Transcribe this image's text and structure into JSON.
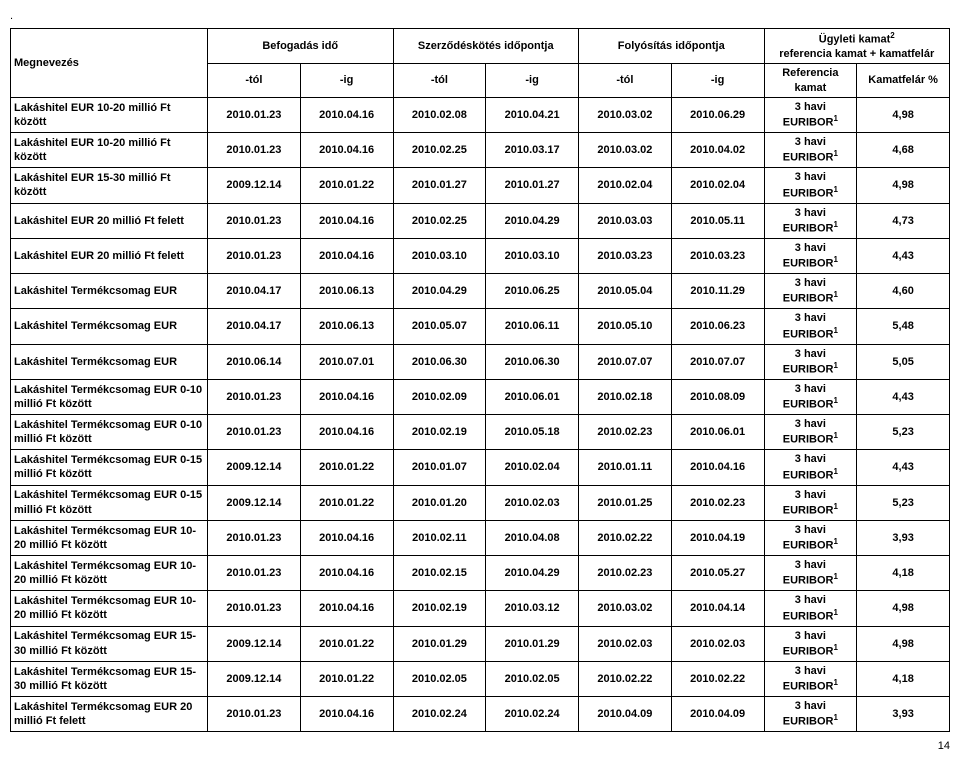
{
  "dot": ".",
  "page_number": "14",
  "header": {
    "megnevezes": "Megnevezés",
    "befogadas": "Befogadás idő",
    "szerzodeskotes": "Szerződéskötés időpontja",
    "folyositas": "Folyósítás időpontja",
    "ugyleti": "Ügyleti kamat",
    "ugyleti_sup": "2",
    "refplus": "referencia kamat + kamatfelár",
    "tol": "-tól",
    "ig": "-ig",
    "ref_kamat": "Referencia kamat",
    "kamatfelar": "Kamatfelár %"
  },
  "rows": [
    {
      "name": "Lakáshitel EUR 10-20 millió Ft között",
      "d": [
        "2010.01.23",
        "2010.04.16",
        "2010.02.08",
        "2010.04.21",
        "2010.03.02",
        "2010.06.29"
      ],
      "ref": "3 havi EURIBOR",
      "sup": "1",
      "pct": "4,98"
    },
    {
      "name": "Lakáshitel EUR 10-20 millió Ft között",
      "d": [
        "2010.01.23",
        "2010.04.16",
        "2010.02.25",
        "2010.03.17",
        "2010.03.02",
        "2010.04.02"
      ],
      "ref": "3 havi EURIBOR",
      "sup": "1",
      "pct": "4,68"
    },
    {
      "name": "Lakáshitel EUR 15-30 millió Ft között",
      "d": [
        "2009.12.14",
        "2010.01.22",
        "2010.01.27",
        "2010.01.27",
        "2010.02.04",
        "2010.02.04"
      ],
      "ref": "3 havi EURIBOR",
      "sup": "1",
      "pct": "4,98"
    },
    {
      "name": "Lakáshitel EUR 20 millió Ft felett",
      "d": [
        "2010.01.23",
        "2010.04.16",
        "2010.02.25",
        "2010.04.29",
        "2010.03.03",
        "2010.05.11"
      ],
      "ref": "3 havi EURIBOR",
      "sup": "1",
      "pct": "4,73"
    },
    {
      "name": "Lakáshitel EUR 20 millió Ft felett",
      "d": [
        "2010.01.23",
        "2010.04.16",
        "2010.03.10",
        "2010.03.10",
        "2010.03.23",
        "2010.03.23"
      ],
      "ref": "3 havi EURIBOR",
      "sup": "1",
      "pct": "4,43"
    },
    {
      "name": "Lakáshitel Termékcsomag EUR",
      "d": [
        "2010.04.17",
        "2010.06.13",
        "2010.04.29",
        "2010.06.25",
        "2010.05.04",
        "2010.11.29"
      ],
      "ref": "3 havi EURIBOR",
      "sup": "1",
      "pct": "4,60"
    },
    {
      "name": "Lakáshitel Termékcsomag EUR",
      "d": [
        "2010.04.17",
        "2010.06.13",
        "2010.05.07",
        "2010.06.11",
        "2010.05.10",
        "2010.06.23"
      ],
      "ref": "3 havi EURIBOR",
      "sup": "1",
      "pct": "5,48"
    },
    {
      "name": "Lakáshitel Termékcsomag EUR",
      "d": [
        "2010.06.14",
        "2010.07.01",
        "2010.06.30",
        "2010.06.30",
        "2010.07.07",
        "2010.07.07"
      ],
      "ref": "3 havi EURIBOR",
      "sup": "1",
      "pct": "5,05"
    },
    {
      "name": "Lakáshitel Termékcsomag EUR 0-10 millió Ft között",
      "d": [
        "2010.01.23",
        "2010.04.16",
        "2010.02.09",
        "2010.06.01",
        "2010.02.18",
        "2010.08.09"
      ],
      "ref": "3 havi EURIBOR",
      "sup": "1",
      "pct": "4,43"
    },
    {
      "name": "Lakáshitel Termékcsomag EUR 0-10 millió Ft között",
      "d": [
        "2010.01.23",
        "2010.04.16",
        "2010.02.19",
        "2010.05.18",
        "2010.02.23",
        "2010.06.01"
      ],
      "ref": "3 havi EURIBOR",
      "sup": "1",
      "pct": "5,23"
    },
    {
      "name": "Lakáshitel Termékcsomag EUR 0-15 millió Ft között",
      "d": [
        "2009.12.14",
        "2010.01.22",
        "2010.01.07",
        "2010.02.04",
        "2010.01.11",
        "2010.04.16"
      ],
      "ref": "3 havi EURIBOR",
      "sup": "1",
      "pct": "4,43"
    },
    {
      "name": "Lakáshitel Termékcsomag EUR 0-15 millió Ft között",
      "d": [
        "2009.12.14",
        "2010.01.22",
        "2010.01.20",
        "2010.02.03",
        "2010.01.25",
        "2010.02.23"
      ],
      "ref": "3 havi EURIBOR",
      "sup": "1",
      "pct": "5,23"
    },
    {
      "name": "Lakáshitel Termékcsomag EUR 10-20 millió Ft között",
      "d": [
        "2010.01.23",
        "2010.04.16",
        "2010.02.11",
        "2010.04.08",
        "2010.02.22",
        "2010.04.19"
      ],
      "ref": "3 havi EURIBOR",
      "sup": "1",
      "pct": "3,93"
    },
    {
      "name": "Lakáshitel Termékcsomag EUR 10-20 millió Ft között",
      "d": [
        "2010.01.23",
        "2010.04.16",
        "2010.02.15",
        "2010.04.29",
        "2010.02.23",
        "2010.05.27"
      ],
      "ref": "3 havi EURIBOR",
      "sup": "1",
      "pct": "4,18"
    },
    {
      "name": "Lakáshitel Termékcsomag EUR 10-20 millió Ft között",
      "d": [
        "2010.01.23",
        "2010.04.16",
        "2010.02.19",
        "2010.03.12",
        "2010.03.02",
        "2010.04.14"
      ],
      "ref": "3 havi EURIBOR",
      "sup": "1",
      "pct": "4,98"
    },
    {
      "name": "Lakáshitel Termékcsomag EUR 15-30 millió Ft között",
      "d": [
        "2009.12.14",
        "2010.01.22",
        "2010.01.29",
        "2010.01.29",
        "2010.02.03",
        "2010.02.03"
      ],
      "ref": "3 havi EURIBOR",
      "sup": "1",
      "pct": "4,98"
    },
    {
      "name": "Lakáshitel Termékcsomag EUR 15-30 millió Ft között",
      "d": [
        "2009.12.14",
        "2010.01.22",
        "2010.02.05",
        "2010.02.05",
        "2010.02.22",
        "2010.02.22"
      ],
      "ref": "3 havi EURIBOR",
      "sup": "1",
      "pct": "4,18"
    },
    {
      "name": "Lakáshitel Termékcsomag EUR 20 millió Ft felett",
      "d": [
        "2010.01.23",
        "2010.04.16",
        "2010.02.24",
        "2010.02.24",
        "2010.04.09",
        "2010.04.09"
      ],
      "ref": "3 havi EURIBOR",
      "sup": "1",
      "pct": "3,93"
    }
  ]
}
